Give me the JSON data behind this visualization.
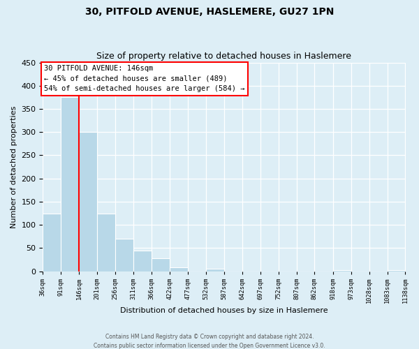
{
  "title": "30, PITFOLD AVENUE, HASLEMERE, GU27 1PN",
  "subtitle": "Size of property relative to detached houses in Haslemere",
  "xlabel": "Distribution of detached houses by size in Haslemere",
  "ylabel": "Number of detached properties",
  "bar_edges": [
    36,
    91,
    146,
    201,
    256,
    311,
    366,
    422,
    477,
    532,
    587,
    642,
    697,
    752,
    807,
    862,
    918,
    973,
    1028,
    1083,
    1138
  ],
  "bar_heights": [
    125,
    375,
    300,
    125,
    70,
    44,
    28,
    9,
    0,
    5,
    0,
    0,
    0,
    0,
    0,
    0,
    2,
    0,
    0,
    2
  ],
  "bar_color": "#b8d8e8",
  "property_line_x": 146,
  "ylim": [
    0,
    450
  ],
  "annotation_title": "30 PITFOLD AVENUE: 146sqm",
  "annotation_line1": "← 45% of detached houses are smaller (489)",
  "annotation_line2": "54% of semi-detached houses are larger (584) →",
  "footnote1": "Contains HM Land Registry data © Crown copyright and database right 2024.",
  "footnote2": "Contains public sector information licensed under the Open Government Licence v3.0.",
  "background_color": "#ddeef6",
  "tick_labels": [
    "36sqm",
    "91sqm",
    "146sqm",
    "201sqm",
    "256sqm",
    "311sqm",
    "366sqm",
    "422sqm",
    "477sqm",
    "532sqm",
    "587sqm",
    "642sqm",
    "697sqm",
    "752sqm",
    "807sqm",
    "862sqm",
    "918sqm",
    "973sqm",
    "1028sqm",
    "1083sqm",
    "1138sqm"
  ],
  "yticks": [
    0,
    50,
    100,
    150,
    200,
    250,
    300,
    350,
    400,
    450
  ]
}
